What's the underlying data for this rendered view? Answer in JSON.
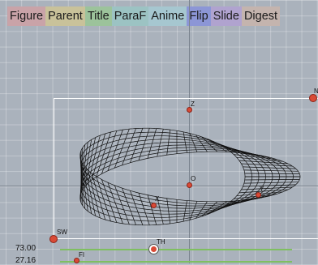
{
  "toolbar": {
    "tabs": [
      {
        "label": "Figure",
        "color": "#c9a3a8"
      },
      {
        "label": "Parent",
        "color": "#c9c29a"
      },
      {
        "label": "Title",
        "color": "#9cc39b"
      },
      {
        "label": "ParaF",
        "color": "#9cc3c3"
      },
      {
        "label": "Anime",
        "color": "#a6c7d0"
      },
      {
        "label": "Flip",
        "color": "#8c96d6"
      },
      {
        "label": "Slide",
        "color": "#b0a3cf"
      },
      {
        "label": "Digest",
        "color": "#c4b4ae"
      }
    ]
  },
  "points": {
    "z": "Z",
    "o": "O",
    "x": "X",
    "y": "Y",
    "sw": "SW",
    "ne": "N",
    "th": "TH",
    "fi": "FI"
  },
  "sliders": {
    "th_value": "73.00",
    "fi_value": "27.16"
  },
  "colors": {
    "point": "#d94a36",
    "frame": "#ffffff",
    "slider": "#7fbf60"
  }
}
